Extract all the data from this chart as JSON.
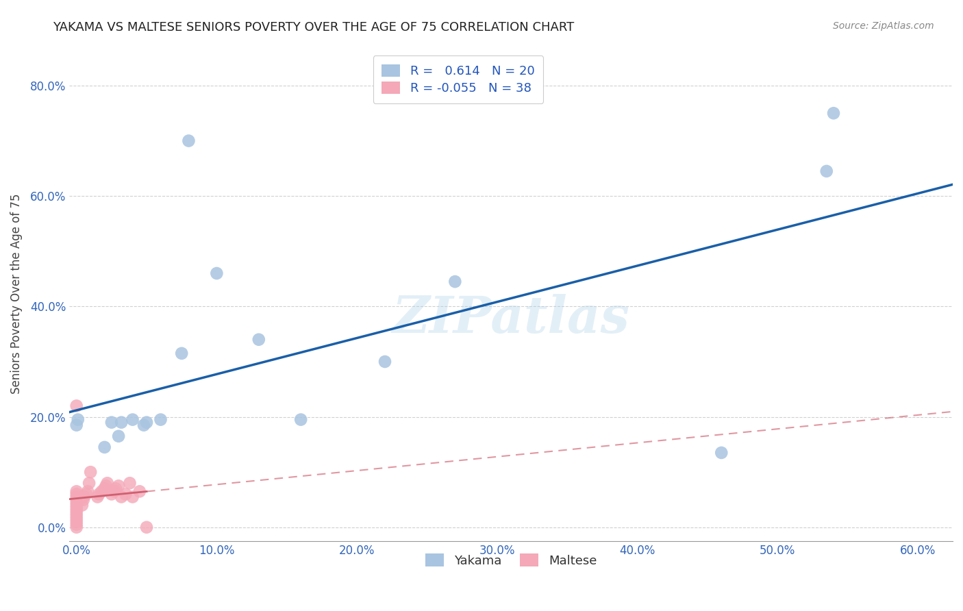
{
  "title": "YAKAMA VS MALTESE SENIORS POVERTY OVER THE AGE OF 75 CORRELATION CHART",
  "source": "Source: ZipAtlas.com",
  "ylabel": "Seniors Poverty Over the Age of 75",
  "xlabel": "",
  "xlim": [
    -0.005,
    0.625
  ],
  "ylim": [
    -0.025,
    0.87
  ],
  "xticks": [
    0.0,
    0.1,
    0.2,
    0.3,
    0.4,
    0.5,
    0.6
  ],
  "yticks": [
    0.0,
    0.2,
    0.4,
    0.6,
    0.8
  ],
  "background_color": "#ffffff",
  "grid_color": "#d0d0d0",
  "watermark": "ZIPatlas",
  "yakama_color": "#a8c4e0",
  "maltese_color": "#f4a8b8",
  "yakama_line_color": "#1a5fa8",
  "maltese_line_color": "#d06070",
  "legend_yakama_R": "0.614",
  "legend_yakama_N": "20",
  "legend_maltese_R": "-0.055",
  "legend_maltese_N": "38",
  "yakama_x": [
    0.0,
    0.001,
    0.02,
    0.025,
    0.03,
    0.032,
    0.04,
    0.048,
    0.05,
    0.06,
    0.075,
    0.08,
    0.1,
    0.13,
    0.16,
    0.22,
    0.27,
    0.46,
    0.535,
    0.54
  ],
  "yakama_y": [
    0.185,
    0.195,
    0.145,
    0.19,
    0.165,
    0.19,
    0.195,
    0.185,
    0.19,
    0.195,
    0.315,
    0.7,
    0.46,
    0.34,
    0.195,
    0.3,
    0.445,
    0.135,
    0.645,
    0.75
  ],
  "maltese_x": [
    0.0,
    0.0,
    0.0,
    0.0,
    0.0,
    0.0,
    0.0,
    0.0,
    0.0,
    0.0,
    0.0,
    0.0,
    0.0,
    0.0,
    0.0,
    0.004,
    0.005,
    0.005,
    0.007,
    0.008,
    0.009,
    0.01,
    0.015,
    0.016,
    0.018,
    0.02,
    0.021,
    0.022,
    0.025,
    0.027,
    0.028,
    0.03,
    0.032,
    0.035,
    0.038,
    0.04,
    0.045,
    0.05
  ],
  "maltese_y": [
    0.0,
    0.005,
    0.01,
    0.015,
    0.02,
    0.025,
    0.03,
    0.035,
    0.04,
    0.045,
    0.05,
    0.055,
    0.06,
    0.065,
    0.22,
    0.04,
    0.05,
    0.055,
    0.06,
    0.065,
    0.08,
    0.1,
    0.055,
    0.06,
    0.065,
    0.07,
    0.075,
    0.08,
    0.06,
    0.065,
    0.07,
    0.075,
    0.055,
    0.06,
    0.08,
    0.055,
    0.065,
    0.0
  ]
}
